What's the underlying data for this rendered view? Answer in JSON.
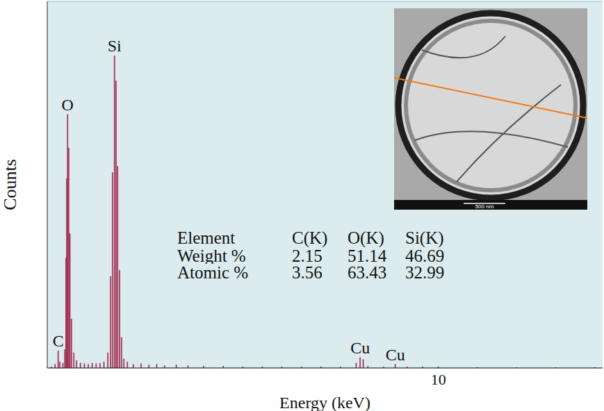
{
  "chart_data": {
    "type": "bar",
    "x_label": "Energy (keV)",
    "y_label": "Counts",
    "x": [
      0.1,
      0.2,
      0.28,
      0.32,
      0.4,
      0.45,
      0.48,
      0.5,
      0.52,
      0.55,
      0.58,
      0.62,
      0.68,
      0.75,
      0.85,
      0.95,
      1.05,
      1.15,
      1.25,
      1.35,
      1.45,
      1.55,
      1.62,
      1.67,
      1.72,
      1.76,
      1.8,
      1.85,
      1.9,
      1.96,
      2.05,
      2.2,
      2.4,
      2.6,
      2.8,
      3.0,
      3.3,
      3.6,
      4.0,
      4.5,
      5.0,
      5.5,
      6.0,
      6.5,
      7.0,
      7.5,
      7.9,
      8.0,
      8.08,
      8.2,
      8.6,
      8.9,
      9.2,
      9.6,
      10.0,
      11.0,
      12.0,
      13.0,
      14.0
    ],
    "values": [
      0.02,
      0.06,
      0.28,
      0.1,
      0.08,
      0.3,
      1.8,
      3.1,
      4.15,
      3.6,
      2.2,
      0.8,
      0.25,
      0.12,
      0.08,
      0.07,
      0.06,
      0.08,
      0.07,
      0.08,
      0.1,
      0.25,
      1.5,
      3.2,
      5.11,
      4.7,
      3.3,
      1.6,
      0.5,
      0.15,
      0.1,
      0.06,
      0.07,
      0.05,
      0.06,
      0.04,
      0.05,
      0.04,
      0.03,
      0.03,
      0.02,
      0.02,
      0.02,
      0.02,
      0.02,
      0.02,
      0.08,
      0.17,
      0.14,
      0.03,
      0.02,
      0.06,
      0.02,
      0.02,
      0.02,
      0.01,
      0.01,
      0.01,
      0.01
    ],
    "color": "#3d2b9e",
    "xlim": [
      0,
      14.2
    ],
    "xticks": [
      10
    ],
    "ylim": [
      0,
      6
    ],
    "yticks": [
      1,
      2,
      3,
      4,
      5
    ],
    "grid": true,
    "tick_labels": "x",
    "annotations": [
      {
        "text": "O",
        "x": 0.52,
        "y": 4.15
      },
      {
        "text": "Si",
        "x": 1.72,
        "y": 5.11
      },
      {
        "text": "C",
        "x": 0.28,
        "y": 0.28
      },
      {
        "text": "Cu",
        "x": 8.0,
        "y": 0.17
      },
      {
        "text": "Cu",
        "x": 8.9,
        "y": 0.06
      }
    ],
    "table": {
      "header": [
        "Element",
        "C(K)",
        "O(K)",
        "Si(K)"
      ],
      "rows": [
        {
          "label": "Weight %",
          "values": [
            2.15,
            51.14,
            46.69
          ]
        },
        {
          "label": "Atomic %",
          "values": [
            3.56,
            63.43,
            32.99
          ]
        }
      ]
    },
    "inset": {
      "scale_bar": "500 nm"
    }
  }
}
